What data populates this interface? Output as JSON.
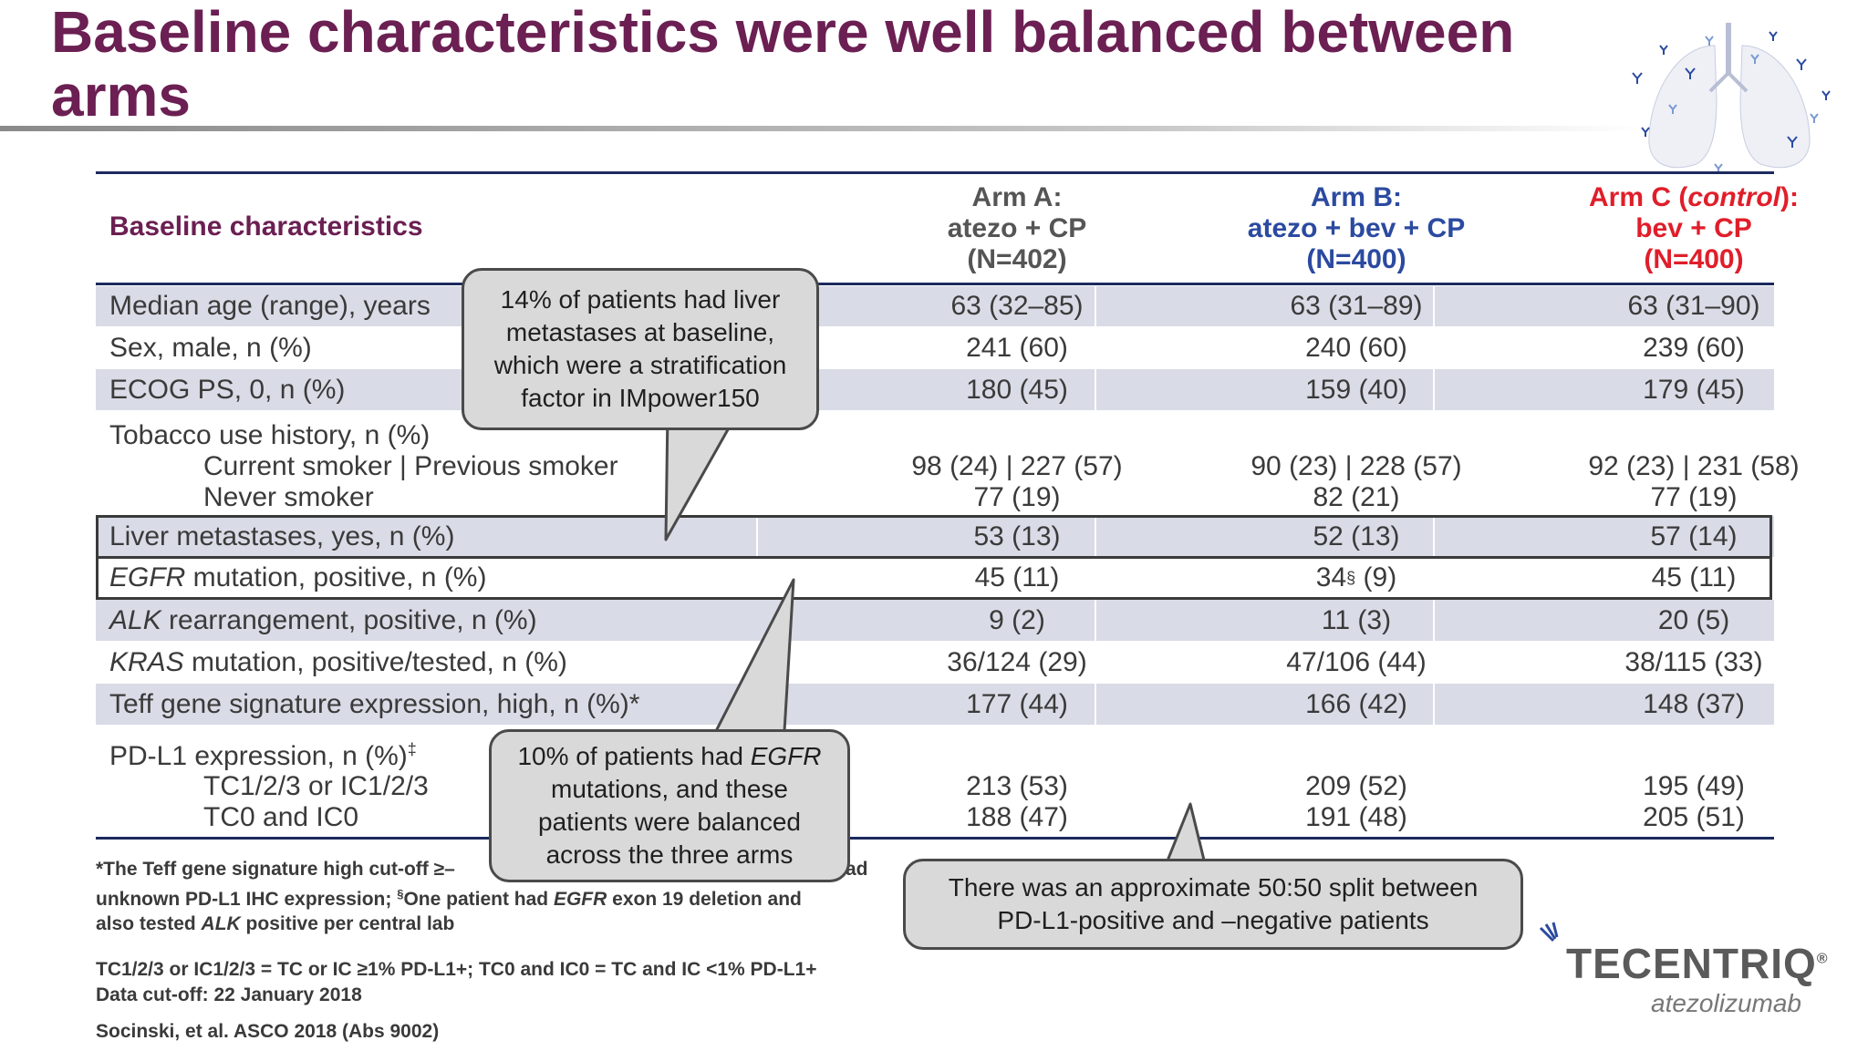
{
  "slide": {
    "title": "Baseline characteristics were well balanced between arms",
    "brand_color": "#6b1f52"
  },
  "table": {
    "header_label": "Baseline characteristics",
    "arms": [
      {
        "line1": "Arm A:",
        "line2": "atezo + CP",
        "line3": "(N=402)",
        "color": "#555555"
      },
      {
        "line1": "Arm B:",
        "line2": "atezo + bev + CP",
        "line3": "(N=400)",
        "color": "#2b4aa0"
      },
      {
        "line1_pre": "Arm C (",
        "line1_italic": "control",
        "line1_post": "):",
        "line2": "bev + CP",
        "line3": "(N=400)",
        "color": "#e01e2a"
      }
    ],
    "median_age": {
      "label": "Median age (range), years",
      "a": "63 (32–85)",
      "b": "63 (31–89)",
      "c": "63 (31–90)"
    },
    "sex_male": {
      "label": "Sex, male, n (%)",
      "a": "241 (60)",
      "b": "240 (60)",
      "c": "239 (60)"
    },
    "ecog": {
      "label": "ECOG PS, 0, n (%)",
      "a": "180 (45)",
      "b": "159 (40)",
      "c": "179 (45)"
    },
    "tobacco": {
      "label": "Tobacco use history, n (%)",
      "sub1": "Current smoker | Previous smoker",
      "sub2": "Never smoker",
      "a1": "98 (24) | 227 (57)",
      "a2": "77 (19)",
      "b1": "90 (23) | 228 (57)",
      "b2": "82 (21)",
      "c1": "92 (23) | 231 (58)",
      "c2": "77 (19)"
    },
    "liver": {
      "label": "Liver metastases, yes, n (%)",
      "a": "53 (13)",
      "b": "52 (13)",
      "c": "57 (14)"
    },
    "egfr": {
      "label_italic": "EGFR",
      "label_rest": " mutation, positive, n (%)",
      "a": "45 (11)",
      "b_main": "34",
      "b_sup": "§",
      "b_rest": " (9)",
      "c": "45 (11)"
    },
    "alk": {
      "label_italic": "ALK",
      "label_rest": " rearrangement, positive, n (%)",
      "a": "9 (2)",
      "b": "11 (3)",
      "c": "20 (5)"
    },
    "kras": {
      "label_italic": "KRAS",
      "label_rest": " mutation, positive/tested, n (%)",
      "a": "36/124 (29)",
      "b": "47/106 (44)",
      "c": "38/115 (33)"
    },
    "teff": {
      "label": "Teff gene signature expression, high, n (%)*",
      "a": "177 (44)",
      "b": "166 (42)",
      "c": "148 (37)"
    },
    "pdl1": {
      "label": "PD-L1 expression, n (%)",
      "label_sup": "‡",
      "sub1": "TC1/2/3 or IC1/2/3",
      "sub2": "TC0 and IC0",
      "a1": "213 (53)",
      "a2": "188 (47)",
      "b1": "209 (52)",
      "b2": "191 (48)",
      "c1": "195 (49)",
      "c2": "205 (51)"
    }
  },
  "callouts": {
    "liver": "14% of patients had liver metastases at baseline, which were a stratification factor in IMpower150",
    "egfr_pre": "10% of patients had ",
    "egfr_italic": "EGFR",
    "egfr_post": " mutations, and these patients were balanced across the three arms",
    "pdl1": "There was an approximate 50:50 split between PD-L1-positive and –negative patients"
  },
  "footnotes": {
    "line1_a": "*The Teff gene signature high cut-off ≥–",
    "line1_b": "ad",
    "line2_a": "unknown PD-L1 IHC expression; ",
    "line2_sup": "§",
    "line2_b": "One patient had ",
    "line2_italic": "EGFR",
    "line2_c": " exon 19 deletion and",
    "line3_a": "also tested ",
    "line3_italic": "ALK",
    "line3_b": " positive per central lab",
    "definitions": "TC1/2/3 or IC1/2/3 = TC or IC ≥1% PD-L1+; TC0 and IC0 = TC and IC <1% PD-L1+",
    "cutoff": "Data cut-off: 22 January 2018",
    "citation": "Socinski, et al. ASCO 2018 (Abs 9002)"
  },
  "logo": {
    "brand": "TECENTRIQ",
    "registered": "®",
    "generic": "atezolizumab"
  }
}
